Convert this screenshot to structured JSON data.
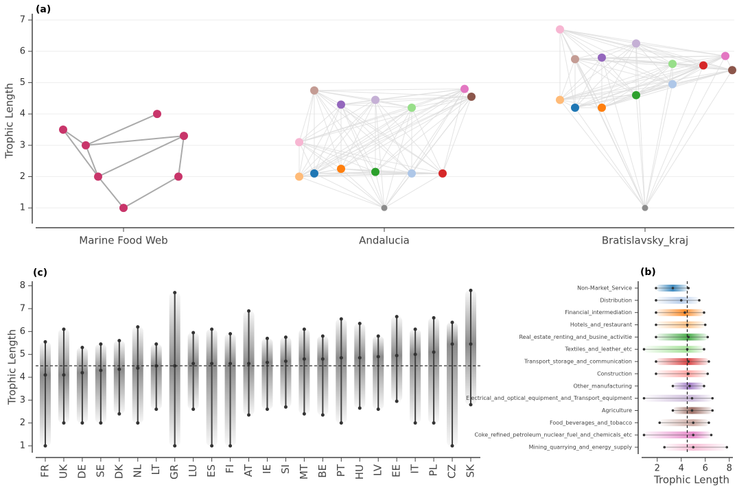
{
  "chart_data": [
    {
      "type": "network",
      "label": "(a)",
      "ylabel": "Trophic Length",
      "ylim": [
        0.5,
        7.2
      ],
      "yticks": [
        1,
        2,
        3,
        4,
        5,
        6,
        7
      ],
      "categories": [
        "Marine Food Web",
        "Andalucia",
        "Bratislavsky_kraj"
      ],
      "networks": [
        {
          "nodes": [
            1,
            2,
            2,
            3,
            3.3,
            3.5,
            4
          ],
          "colors": [
            "#c8356a",
            "#c8356a",
            "#c8356a",
            "#c8356a",
            "#c8356a",
            "#c8356a",
            "#c8356a"
          ],
          "edges": [
            [
              0,
              1
            ],
            [
              0,
              2
            ],
            [
              1,
              3
            ],
            [
              1,
              4
            ],
            [
              2,
              4
            ],
            [
              3,
              4
            ],
            [
              3,
              6
            ],
            [
              5,
              3
            ],
            [
              5,
              1
            ]
          ]
        },
        {
          "nodes": [
            1,
            2.0,
            2.1,
            2.25,
            2.15,
            2.1,
            2.1,
            3.1,
            4.75,
            4.3,
            4.45,
            4.2,
            4.8,
            4.55
          ],
          "colors": [
            "#8c8c8c",
            "#ffbb78",
            "#1f77b4",
            "#ff7f0e",
            "#2ca02c",
            "#aec7e8",
            "#d62728",
            "#f7b6d2",
            "#c49c94",
            "#9467bd",
            "#c5b0d5",
            "#98df8a",
            "#e377c2",
            "#8c564b"
          ]
        },
        {
          "nodes": [
            1,
            4.45,
            4.2,
            4.2,
            4.6,
            4.95,
            5.55,
            6.7,
            5.75,
            5.8,
            6.25,
            5.6,
            5.85,
            5.4
          ],
          "colors": [
            "#8c8c8c",
            "#ffbb78",
            "#1f77b4",
            "#ff7f0e",
            "#2ca02c",
            "#aec7e8",
            "#d62728",
            "#f7b6d2",
            "#c49c94",
            "#9467bd",
            "#c5b0d5",
            "#98df8a",
            "#e377c2",
            "#8c564b"
          ]
        }
      ]
    },
    {
      "type": "strip",
      "label": "(c)",
      "ylabel": "Trophic Length",
      "ylim": [
        0.7,
        8.2
      ],
      "yticks": [
        1,
        2,
        3,
        4,
        5,
        6,
        7,
        8
      ],
      "reference_line": 4.5,
      "categories": [
        "FR",
        "UK",
        "DE",
        "SE",
        "DK",
        "NL",
        "LT",
        "GR",
        "LU",
        "ES",
        "FI",
        "AT",
        "IE",
        "SI",
        "MT",
        "BE",
        "PT",
        "HU",
        "LV",
        "EE",
        "IT",
        "PL",
        "CZ",
        "SK"
      ],
      "min": [
        1.0,
        2.0,
        2.0,
        2.0,
        2.4,
        2.0,
        2.6,
        1.0,
        2.6,
        1.0,
        1.0,
        2.35,
        2.6,
        2.7,
        2.4,
        2.35,
        2.0,
        2.65,
        2.6,
        2.95,
        2.0,
        2.0,
        1.0,
        2.8
      ],
      "mean": [
        4.1,
        4.1,
        4.2,
        4.3,
        4.35,
        4.4,
        4.5,
        4.5,
        4.6,
        4.6,
        4.6,
        4.6,
        4.65,
        4.7,
        4.8,
        4.8,
        4.85,
        4.85,
        4.9,
        4.95,
        5.0,
        5.1,
        5.45,
        5.45
      ],
      "max": [
        5.55,
        6.1,
        5.3,
        5.45,
        5.6,
        6.2,
        5.45,
        7.7,
        5.95,
        6.1,
        5.9,
        6.9,
        5.7,
        5.75,
        6.1,
        5.8,
        6.55,
        6.35,
        5.8,
        6.65,
        6.1,
        6.6,
        6.4,
        7.8
      ]
    },
    {
      "type": "strip_h",
      "label": "(b)",
      "xlabel": "Trophic Length",
      "xlim": [
        0.7,
        8.3
      ],
      "xticks": [
        2,
        4,
        6,
        8
      ],
      "reference_line": 4.5,
      "categories": [
        "Non-Market_Service",
        "Distribution",
        "Financial_intermediation",
        "Hotels_and_restaurant",
        "Real_estate_renting_and_busine_activitie",
        "Textiles_and_leather_etc",
        "Transport_storage_and_communication",
        "Construction",
        "Other_manufacturing",
        "Electrical_and_optical_equipment_and_Transport_equipment",
        "Agriculture",
        "Food_beverages_and_tobacco",
        "Coke_refined_petroleum_nuclear_fuel_and_chemicals_etc",
        "Mining_quarrying_and_energy_supply"
      ],
      "colors": [
        "#1f77b4",
        "#aec7e8",
        "#ff7f0e",
        "#ffbb78",
        "#2ca02c",
        "#98df8a",
        "#d62728",
        "#ff9896",
        "#9467bd",
        "#c5b0d5",
        "#8c564b",
        "#c49c94",
        "#e377c2",
        "#f7b6d2"
      ],
      "min": [
        1.9,
        1.9,
        1.9,
        1.9,
        1.9,
        0.9,
        1.9,
        1.9,
        3.3,
        0.9,
        3.3,
        2.2,
        0.9,
        2.6
      ],
      "mean": [
        3.3,
        4.0,
        4.3,
        4.5,
        4.6,
        4.5,
        4.6,
        4.6,
        4.7,
        4.9,
        4.9,
        5.0,
        5.0,
        5.0
      ],
      "max": [
        4.6,
        5.5,
        5.9,
        6.0,
        6.2,
        5.9,
        6.3,
        6.2,
        5.9,
        6.6,
        6.6,
        6.3,
        6.5,
        7.8
      ]
    }
  ]
}
